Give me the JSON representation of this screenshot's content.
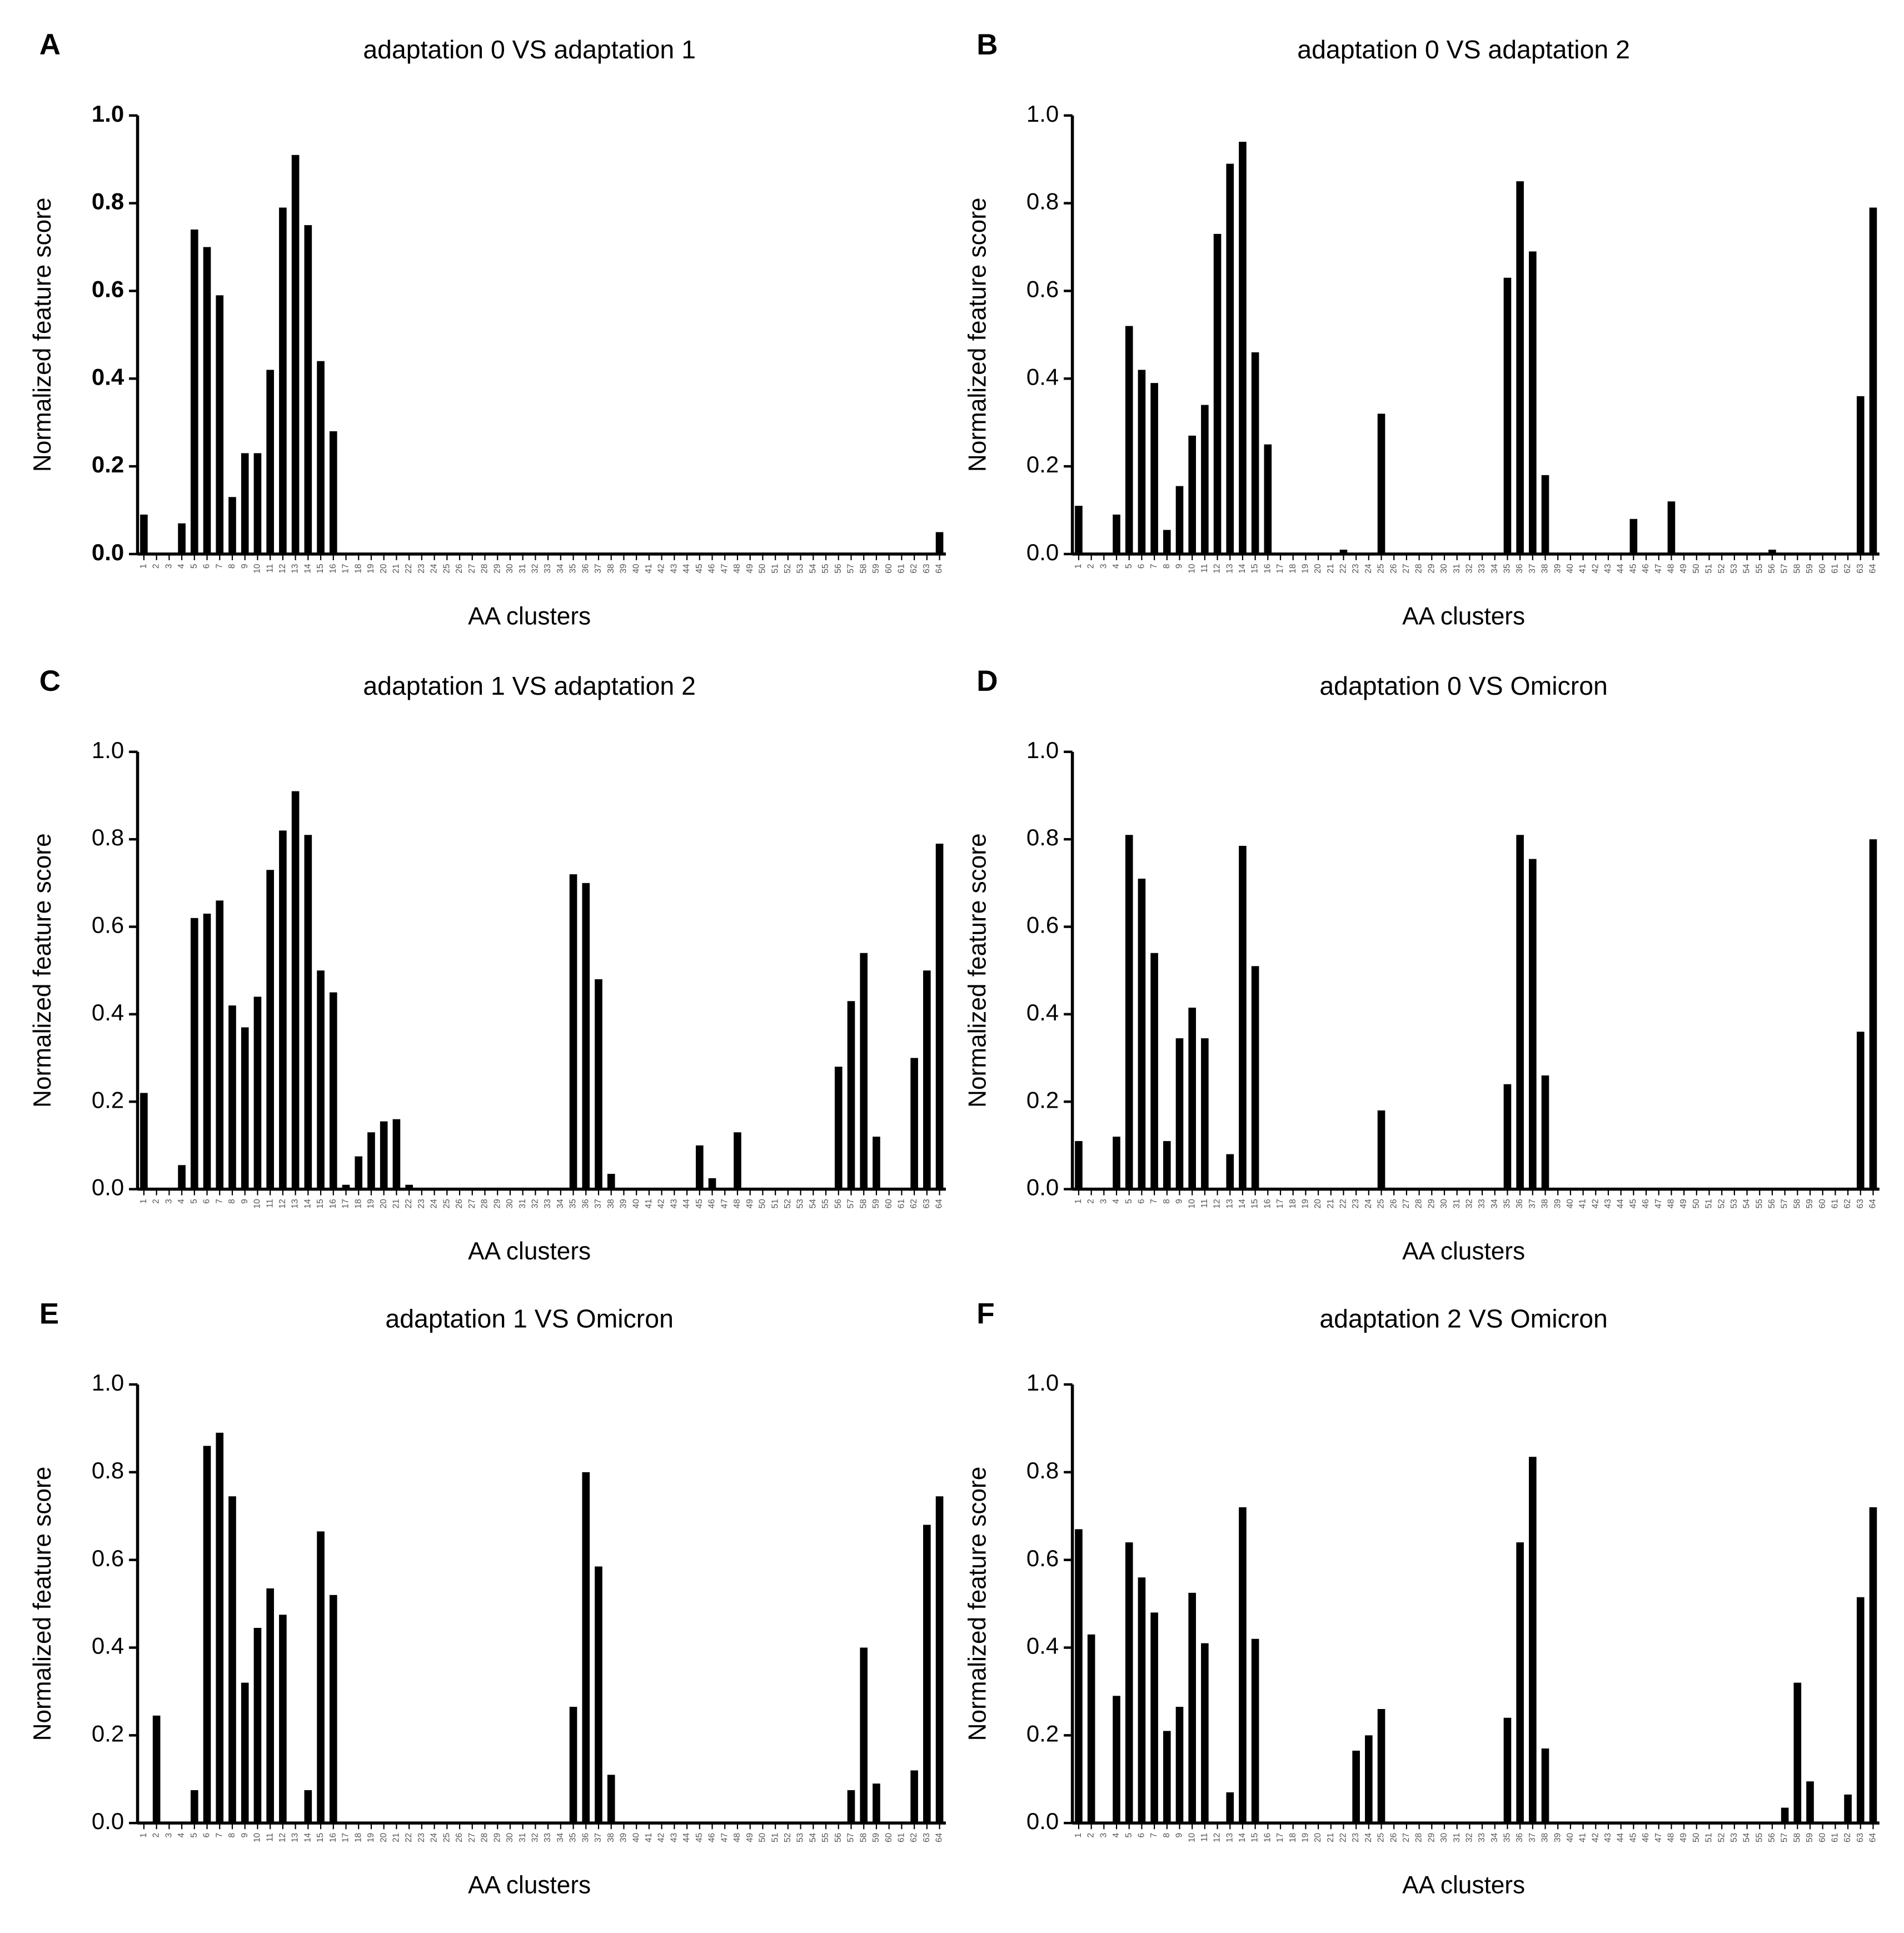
{
  "chart_data": [
    {
      "type": "bar",
      "panel": "A",
      "title": "adaptation 0 VS adaptation 1",
      "x_label": "AA clusters",
      "y_label": "Normalized feature score",
      "color": "#000000",
      "ylim": [
        0,
        1
      ],
      "yticks": [
        {
          "value": 0,
          "label": "0.0"
        },
        {
          "value": 0.2,
          "label": "0.2"
        },
        {
          "value": 0.4,
          "label": "0.4"
        },
        {
          "value": 0.6,
          "label": "0.6"
        },
        {
          "value": 0.8,
          "label": "0.8"
        },
        {
          "value": 1,
          "label": "1.0"
        }
      ],
      "categories": [
        "1",
        "2",
        "3",
        "4",
        "5",
        "6",
        "7",
        "8",
        "9",
        "10",
        "11",
        "12",
        "13",
        "14",
        "15",
        "16",
        "17",
        "18",
        "19",
        "20",
        "21",
        "22",
        "23",
        "24",
        "25",
        "26",
        "27",
        "28",
        "29",
        "30",
        "31",
        "32",
        "33",
        "34",
        "35",
        "36",
        "37",
        "38",
        "39",
        "40",
        "41",
        "42",
        "43",
        "44",
        "45",
        "46",
        "47",
        "48",
        "49",
        "50",
        "51",
        "52",
        "53",
        "54",
        "55",
        "56",
        "57",
        "58",
        "59",
        "60",
        "61",
        "62",
        "63",
        "64"
      ],
      "values": [
        0.09,
        0,
        0,
        0.07,
        0.74,
        0.7,
        0.59,
        0.13,
        0.23,
        0.23,
        0.42,
        0.79,
        0.91,
        0.75,
        0.44,
        0.28,
        0,
        0,
        0,
        0,
        0,
        0,
        0,
        0,
        0,
        0,
        0,
        0,
        0,
        0,
        0,
        0,
        0,
        0,
        0,
        0,
        0,
        0,
        0,
        0,
        0,
        0,
        0,
        0,
        0,
        0,
        0,
        0,
        0,
        0,
        0,
        0,
        0,
        0,
        0,
        0,
        0,
        0,
        0,
        0,
        0,
        0,
        0,
        0.05
      ]
    },
    {
      "type": "bar",
      "panel": "B",
      "title": "adaptation 0 VS adaptation 2",
      "x_label": "AA clusters",
      "y_label": "Normalized feature score",
      "color": "#000000",
      "ylim": [
        0,
        1
      ],
      "yticks": [
        {
          "value": 0,
          "label": "0.0"
        },
        {
          "value": 0.2,
          "label": "0.2"
        },
        {
          "value": 0.4,
          "label": "0.4"
        },
        {
          "value": 0.6,
          "label": "0.6"
        },
        {
          "value": 0.8,
          "label": "0.8"
        },
        {
          "value": 1,
          "label": "1.0"
        }
      ],
      "categories": [
        "1",
        "2",
        "3",
        "4",
        "5",
        "6",
        "7",
        "8",
        "9",
        "10",
        "11",
        "12",
        "13",
        "14",
        "15",
        "16",
        "17",
        "18",
        "19",
        "20",
        "21",
        "22",
        "23",
        "24",
        "25",
        "26",
        "27",
        "28",
        "29",
        "30",
        "31",
        "32",
        "33",
        "34",
        "35",
        "36",
        "37",
        "38",
        "39",
        "40",
        "41",
        "42",
        "43",
        "44",
        "45",
        "46",
        "47",
        "48",
        "49",
        "50",
        "51",
        "52",
        "53",
        "54",
        "55",
        "56",
        "57",
        "58",
        "59",
        "60",
        "61",
        "62",
        "63",
        "64"
      ],
      "values": [
        0.11,
        0,
        0,
        0.09,
        0.52,
        0.42,
        0.39,
        0.055,
        0.155,
        0.27,
        0.34,
        0.73,
        0.89,
        0.94,
        0.46,
        0.25,
        0,
        0,
        0,
        0,
        0,
        0.01,
        0,
        0,
        0.32,
        0,
        0,
        0,
        0,
        0,
        0,
        0,
        0,
        0,
        0.63,
        0.85,
        0.69,
        0.18,
        0,
        0,
        0,
        0,
        0,
        0,
        0.08,
        0,
        0,
        0.12,
        0,
        0,
        0,
        0,
        0,
        0,
        0,
        0.01,
        0,
        0,
        0,
        0,
        0,
        0,
        0.36,
        0.79
      ]
    },
    {
      "type": "bar",
      "panel": "C",
      "title": "adaptation 1 VS adaptation 2",
      "x_label": "AA clusters",
      "y_label": "Normalized feature score",
      "color": "#000000",
      "ylim": [
        0,
        1
      ],
      "yticks": [
        {
          "value": 0,
          "label": "0.0"
        },
        {
          "value": 0.2,
          "label": "0.2"
        },
        {
          "value": 0.4,
          "label": "0.4"
        },
        {
          "value": 0.6,
          "label": "0.6"
        },
        {
          "value": 0.8,
          "label": "0.8"
        },
        {
          "value": 1,
          "label": "1.0"
        }
      ],
      "categories": [
        "1",
        "2",
        "3",
        "4",
        "5",
        "6",
        "7",
        "8",
        "9",
        "10",
        "11",
        "12",
        "13",
        "14",
        "15",
        "16",
        "17",
        "18",
        "19",
        "20",
        "21",
        "22",
        "23",
        "24",
        "25",
        "26",
        "27",
        "28",
        "29",
        "30",
        "31",
        "32",
        "33",
        "34",
        "35",
        "36",
        "37",
        "38",
        "39",
        "40",
        "41",
        "42",
        "43",
        "44",
        "45",
        "46",
        "47",
        "48",
        "49",
        "50",
        "51",
        "52",
        "53",
        "54",
        "55",
        "56",
        "57",
        "58",
        "59",
        "60",
        "61",
        "62",
        "63",
        "64"
      ],
      "values": [
        0.22,
        0,
        0,
        0.055,
        0.62,
        0.63,
        0.66,
        0.42,
        0.37,
        0.44,
        0.73,
        0.82,
        0.91,
        0.81,
        0.5,
        0.45,
        0.01,
        0.075,
        0.13,
        0.155,
        0.16,
        0.01,
        0,
        0,
        0,
        0,
        0,
        0,
        0,
        0,
        0,
        0,
        0,
        0,
        0.72,
        0.7,
        0.48,
        0.035,
        0,
        0,
        0,
        0,
        0,
        0,
        0.1,
        0.025,
        0,
        0.13,
        0,
        0,
        0,
        0,
        0,
        0,
        0,
        0.28,
        0.43,
        0.54,
        0.12,
        0,
        0,
        0.3,
        0.5,
        0.79
      ]
    },
    {
      "type": "bar",
      "panel": "D",
      "title": "adaptation 0 VS Omicron",
      "x_label": "AA clusters",
      "y_label": "Normalized feature score",
      "color": "#000000",
      "ylim": [
        0,
        1
      ],
      "yticks": [
        {
          "value": 0,
          "label": "0.0"
        },
        {
          "value": 0.2,
          "label": "0.2"
        },
        {
          "value": 0.4,
          "label": "0.4"
        },
        {
          "value": 0.6,
          "label": "0.6"
        },
        {
          "value": 0.8,
          "label": "0.8"
        },
        {
          "value": 1,
          "label": "1.0"
        }
      ],
      "categories": [
        "1",
        "2",
        "3",
        "4",
        "5",
        "6",
        "7",
        "8",
        "9",
        "10",
        "11",
        "12",
        "13",
        "14",
        "15",
        "16",
        "17",
        "18",
        "19",
        "20",
        "21",
        "22",
        "23",
        "24",
        "25",
        "26",
        "27",
        "28",
        "29",
        "30",
        "31",
        "32",
        "33",
        "34",
        "35",
        "36",
        "37",
        "38",
        "39",
        "40",
        "41",
        "42",
        "43",
        "44",
        "45",
        "46",
        "47",
        "48",
        "49",
        "50",
        "51",
        "52",
        "53",
        "54",
        "55",
        "56",
        "57",
        "58",
        "59",
        "60",
        "61",
        "62",
        "63",
        "64"
      ],
      "values": [
        0.11,
        0,
        0,
        0.12,
        0.81,
        0.71,
        0.54,
        0.11,
        0.345,
        0.415,
        0.345,
        0,
        0.08,
        0.785,
        0.51,
        0,
        0,
        0,
        0,
        0,
        0,
        0,
        0,
        0,
        0.18,
        0,
        0,
        0,
        0,
        0,
        0,
        0,
        0,
        0,
        0.24,
        0.81,
        0.755,
        0.26,
        0,
        0,
        0,
        0,
        0,
        0,
        0,
        0,
        0,
        0,
        0,
        0,
        0,
        0,
        0,
        0,
        0,
        0,
        0,
        0,
        0,
        0,
        0,
        0,
        0.36,
        0.8
      ]
    },
    {
      "type": "bar",
      "panel": "E",
      "title": "adaptation 1 VS Omicron",
      "x_label": "AA clusters",
      "y_label": "Normalized feature score",
      "color": "#000000",
      "ylim": [
        0,
        1
      ],
      "yticks": [
        {
          "value": 0,
          "label": "0.0"
        },
        {
          "value": 0.2,
          "label": "0.2"
        },
        {
          "value": 0.4,
          "label": "0.4"
        },
        {
          "value": 0.6,
          "label": "0.6"
        },
        {
          "value": 0.8,
          "label": "0.8"
        },
        {
          "value": 1,
          "label": "1.0"
        }
      ],
      "categories": [
        "1",
        "2",
        "3",
        "4",
        "5",
        "6",
        "7",
        "8",
        "9",
        "10",
        "11",
        "12",
        "13",
        "14",
        "15",
        "16",
        "17",
        "18",
        "19",
        "20",
        "21",
        "22",
        "23",
        "24",
        "25",
        "26",
        "27",
        "28",
        "29",
        "30",
        "31",
        "32",
        "33",
        "34",
        "35",
        "36",
        "37",
        "38",
        "39",
        "40",
        "41",
        "42",
        "43",
        "44",
        "45",
        "46",
        "47",
        "48",
        "49",
        "50",
        "51",
        "52",
        "53",
        "54",
        "55",
        "56",
        "57",
        "58",
        "59",
        "60",
        "61",
        "62",
        "63",
        "64"
      ],
      "values": [
        0,
        0.245,
        0,
        0,
        0.075,
        0.86,
        0.89,
        0.745,
        0.32,
        0.445,
        0.535,
        0.475,
        0,
        0.075,
        0.665,
        0.52,
        0,
        0,
        0,
        0,
        0,
        0,
        0,
        0,
        0,
        0,
        0,
        0,
        0,
        0,
        0,
        0,
        0,
        0,
        0.265,
        0.8,
        0.585,
        0.11,
        0,
        0,
        0,
        0,
        0,
        0,
        0,
        0,
        0,
        0,
        0,
        0,
        0,
        0,
        0,
        0,
        0,
        0,
        0.075,
        0.4,
        0.09,
        0,
        0,
        0.12,
        0.68,
        0.745
      ]
    },
    {
      "type": "bar",
      "panel": "F",
      "title": "adaptation 2 VS Omicron",
      "x_label": "AA clusters",
      "y_label": "Normalized feature score",
      "color": "#000000",
      "ylim": [
        0,
        1
      ],
      "yticks": [
        {
          "value": 0,
          "label": "0.0"
        },
        {
          "value": 0.2,
          "label": "0.2"
        },
        {
          "value": 0.4,
          "label": "0.4"
        },
        {
          "value": 0.6,
          "label": "0.6"
        },
        {
          "value": 0.8,
          "label": "0.8"
        },
        {
          "value": 1,
          "label": "1.0"
        }
      ],
      "categories": [
        "1",
        "2",
        "3",
        "4",
        "5",
        "6",
        "7",
        "8",
        "9",
        "10",
        "11",
        "12",
        "13",
        "14",
        "15",
        "16",
        "17",
        "18",
        "19",
        "20",
        "21",
        "22",
        "23",
        "24",
        "25",
        "26",
        "27",
        "28",
        "29",
        "30",
        "31",
        "32",
        "33",
        "34",
        "35",
        "36",
        "37",
        "38",
        "39",
        "40",
        "41",
        "42",
        "43",
        "44",
        "45",
        "46",
        "47",
        "48",
        "49",
        "50",
        "51",
        "52",
        "53",
        "54",
        "55",
        "56",
        "57",
        "58",
        "59",
        "60",
        "61",
        "62",
        "63",
        "64"
      ],
      "values": [
        0.67,
        0.43,
        0,
        0.29,
        0.64,
        0.56,
        0.48,
        0.21,
        0.265,
        0.525,
        0.41,
        0,
        0.07,
        0.72,
        0.42,
        0,
        0,
        0,
        0,
        0,
        0,
        0,
        0.165,
        0.2,
        0.26,
        0,
        0,
        0,
        0,
        0,
        0,
        0,
        0,
        0,
        0.24,
        0.64,
        0.835,
        0.17,
        0,
        0,
        0,
        0,
        0,
        0,
        0,
        0,
        0,
        0,
        0,
        0,
        0,
        0,
        0,
        0,
        0,
        0,
        0.035,
        0.32,
        0.095,
        0,
        0,
        0.065,
        0.515,
        0.72
      ]
    }
  ]
}
